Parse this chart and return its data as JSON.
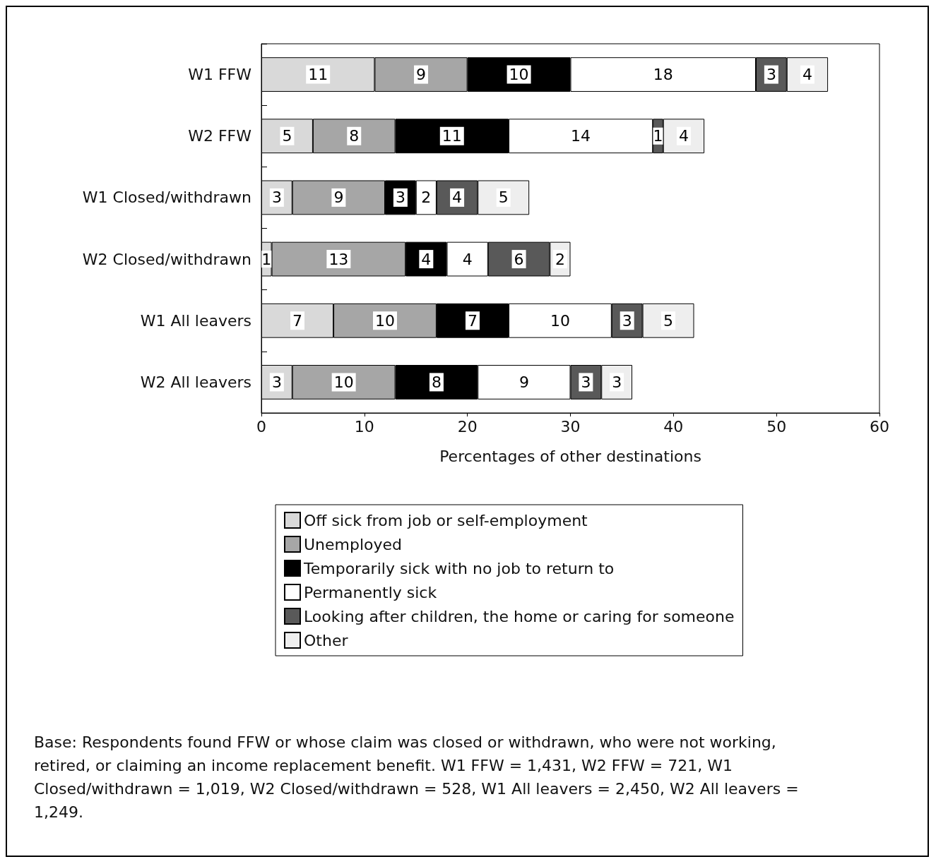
{
  "chart_data": {
    "type": "bar",
    "orientation": "horizontal",
    "stacked": true,
    "data_labels": true,
    "grid": false,
    "legend": "bottom",
    "categories": [
      "W1 FFW",
      "W2 FFW",
      "W1 Closed/withdrawn",
      "W2 Closed/withdrawn",
      "W1 All leavers",
      "W2 All leavers"
    ],
    "xlabel": "Percentages of other destinations",
    "xlim": [
      0,
      60
    ],
    "xticks": [
      0,
      10,
      20,
      30,
      40,
      50,
      60
    ],
    "series": [
      {
        "name": "Off sick from job or self-employment",
        "color": "#d9d9d9",
        "values": [
          11,
          5,
          3,
          1,
          7,
          3
        ]
      },
      {
        "name": "Unemployed",
        "color": "#a6a6a6",
        "values": [
          9,
          8,
          9,
          13,
          10,
          10
        ]
      },
      {
        "name": "Temporarily sick with no job to return to",
        "color": "#000000",
        "values": [
          10,
          11,
          3,
          4,
          7,
          8
        ]
      },
      {
        "name": "Permanently sick",
        "color": "#ffffff",
        "values": [
          18,
          14,
          2,
          4,
          10,
          9
        ]
      },
      {
        "name": "Looking after children, the home or caring for someone",
        "color": "#595959",
        "values": [
          3,
          1,
          4,
          6,
          3,
          3
        ]
      },
      {
        "name": "Other",
        "color": "#eeeeee",
        "values": [
          4,
          4,
          5,
          2,
          5,
          3
        ]
      }
    ],
    "annotations": [
      "Base: Respondents found FFW or whose claim was closed or withdrawn, who were not working, retired, or claiming an income replacement benefit. W1 FFW = 1,431, W2 FFW = 721, W1 Closed/withdrawn = 1,019, W2 Closed/withdrawn = 528, W1 All leavers = 2,450, W2 All leavers = 1,249."
    ]
  }
}
